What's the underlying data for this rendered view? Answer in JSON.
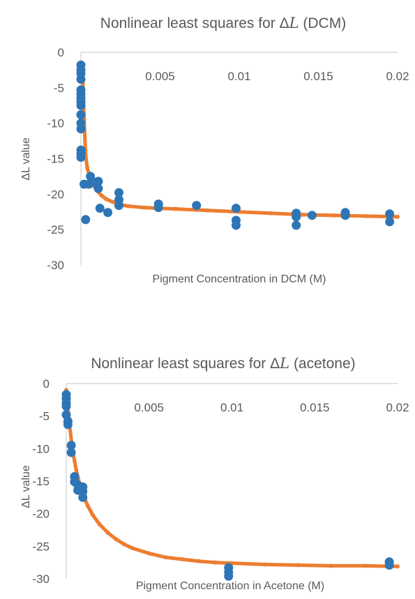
{
  "chart_data": [
    {
      "type": "scatter",
      "title_prefix": "Nonlinear least squares for Δ",
      "title_symbol": "L",
      "title_suffix": " (DCM)",
      "xlabel": "Pigment Concentration in DCM (M)",
      "ylabel": "ΔL value",
      "xlim": [
        0,
        0.02
      ],
      "ylim": [
        -30,
        0
      ],
      "x_ticks": [
        "0.005",
        "0.01",
        "0.015",
        "0.02"
      ],
      "y_ticks": [
        "0",
        "-5",
        "-10",
        "-15",
        "-20",
        "-25",
        "-30"
      ],
      "grid": false,
      "legend": "none",
      "colors": {
        "measured": "#2e75b6",
        "fit": "#ed7d31"
      },
      "series": [
        {
          "role": "measured",
          "points": [
            [
              0,
              -1.8
            ],
            [
              0,
              -2.5
            ],
            [
              0,
              -3.0
            ],
            [
              0,
              -3.8
            ],
            [
              0,
              -5.3
            ],
            [
              0,
              -5.9
            ],
            [
              0,
              -6.5
            ],
            [
              0,
              -7.0
            ],
            [
              0,
              -7.5
            ],
            [
              0,
              -8.8
            ],
            [
              0,
              -10.0
            ],
            [
              0,
              -10.8
            ],
            [
              0,
              -13.8
            ],
            [
              0,
              -14.3
            ],
            [
              0,
              -14.8
            ],
            [
              0.0002,
              -18.6
            ],
            [
              0.0003,
              -23.6
            ],
            [
              0.0005,
              -18.6
            ],
            [
              0.0006,
              -17.5
            ],
            [
              0.0008,
              -18.3
            ],
            [
              0.0011,
              -18.2
            ],
            [
              0.0011,
              -19.2
            ],
            [
              0.0012,
              -22.0
            ],
            [
              0.0017,
              -22.6
            ],
            [
              0.0024,
              -19.8
            ],
            [
              0.0024,
              -20.8
            ],
            [
              0.0024,
              -21.6
            ],
            [
              0.0049,
              -21.4
            ],
            [
              0.0049,
              -21.9
            ],
            [
              0.0073,
              -21.6
            ],
            [
              0.0098,
              -22.0
            ],
            [
              0.0098,
              -23.7
            ],
            [
              0.0098,
              -24.4
            ],
            [
              0.0136,
              -22.7
            ],
            [
              0.0136,
              -23.2
            ],
            [
              0.0136,
              -24.4
            ],
            [
              0.0146,
              -23.0
            ],
            [
              0.0167,
              -22.6
            ],
            [
              0.0167,
              -23.0
            ],
            [
              0.0195,
              -22.8
            ],
            [
              0.0195,
              -23.9
            ]
          ]
        },
        {
          "role": "fit",
          "x": [
            0.0001,
            0.0002,
            0.0003,
            0.0004,
            0.0006,
            0.0008,
            0.001,
            0.0013,
            0.0016,
            0.002,
            0.0025,
            0.003,
            0.004,
            0.005,
            0.006,
            0.008,
            0.01,
            0.012,
            0.014,
            0.016,
            0.018,
            0.02
          ],
          "y": [
            -2.0,
            -9.5,
            -14.5,
            -16.3,
            -17.8,
            -18.8,
            -19.5,
            -20.2,
            -20.7,
            -21.1,
            -21.5,
            -21.7,
            -21.9,
            -22.0,
            -22.1,
            -22.3,
            -22.5,
            -22.7,
            -22.9,
            -23.0,
            -23.1,
            -23.2
          ]
        }
      ]
    },
    {
      "type": "scatter",
      "title_prefix": "Nonlinear least squares for Δ",
      "title_symbol": "L",
      "title_suffix": " (acetone)",
      "xlabel": "Pigment Concentration in Acetone (M)",
      "ylabel": "ΔL value",
      "xlim": [
        0,
        0.02
      ],
      "ylim": [
        -30,
        0
      ],
      "x_ticks": [
        "0.005",
        "0.01",
        "0.015",
        "0.02"
      ],
      "y_ticks": [
        "0",
        "-5",
        "-10",
        "-15",
        "-20",
        "-25",
        "-30"
      ],
      "grid": false,
      "legend": "none",
      "colors": {
        "measured": "#2e75b6",
        "fit": "#ed7d31"
      },
      "series": [
        {
          "role": "measured",
          "points": [
            [
              0,
              -1.7
            ],
            [
              0,
              -2.3
            ],
            [
              0,
              -3.0
            ],
            [
              0,
              -3.5
            ],
            [
              0,
              -4.8
            ],
            [
              0.0001,
              -5.8
            ],
            [
              0.0001,
              -6.3
            ],
            [
              0.0003,
              -9.5
            ],
            [
              0.0003,
              -10.6
            ],
            [
              0.0005,
              -14.3
            ],
            [
              0.0005,
              -15.1
            ],
            [
              0.0007,
              -15.6
            ],
            [
              0.0007,
              -16.4
            ],
            [
              0.001,
              -15.9
            ],
            [
              0.001,
              -16.6
            ],
            [
              0.001,
              -17.5
            ],
            [
              0.0098,
              -28.3
            ],
            [
              0.0098,
              -29.0
            ],
            [
              0.0098,
              -29.6
            ],
            [
              0.0195,
              -27.4
            ],
            [
              0.0195,
              -27.9
            ]
          ]
        },
        {
          "role": "fit",
          "x": [
            0,
            0.0002,
            0.0004,
            0.0006,
            0.0008,
            0.001,
            0.0013,
            0.0016,
            0.002,
            0.0025,
            0.003,
            0.0035,
            0.004,
            0.005,
            0.006,
            0.007,
            0.008,
            0.009,
            0.01,
            0.012,
            0.014,
            0.016,
            0.018,
            0.02
          ],
          "y": [
            -1.0,
            -6.5,
            -10.5,
            -13.3,
            -15.4,
            -17.0,
            -18.8,
            -20.2,
            -21.6,
            -22.9,
            -23.9,
            -24.7,
            -25.3,
            -26.1,
            -26.7,
            -27.0,
            -27.3,
            -27.5,
            -27.6,
            -27.8,
            -27.9,
            -28.0,
            -28.0,
            -28.1
          ]
        }
      ]
    }
  ]
}
